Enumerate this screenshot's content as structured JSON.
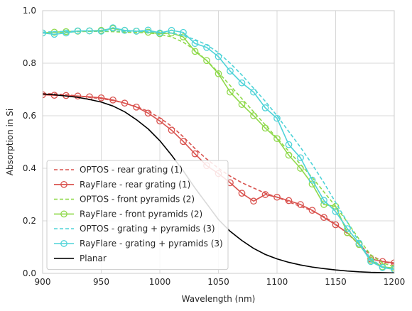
{
  "chart_data": {
    "type": "line",
    "title": "",
    "xlabel": "Wavelength (nm)",
    "ylabel": "Absorption in Si",
    "xlim": [
      900,
      1200
    ],
    "ylim": [
      0.0,
      1.0
    ],
    "xticks": [
      "900",
      "950",
      "1000",
      "1050",
      "1100",
      "1150",
      "1200"
    ],
    "yticks": [
      "0.0",
      "0.2",
      "0.4",
      "0.6",
      "0.8",
      "1.0"
    ],
    "grid": true,
    "legend_position": "lower-left",
    "colors": {
      "rear_grating": "#d9534f",
      "front_pyramids": "#8fd94a",
      "grating_pyramids": "#4fd3d8",
      "planar": "#000000",
      "grid": "#d9d9d9",
      "frame": "#cccccc"
    },
    "series": [
      {
        "name": "OPTOS - rear grating (1)",
        "style": "dashed",
        "color_key": "rear_grating",
        "x": [
          900,
          910,
          920,
          930,
          940,
          950,
          960,
          970,
          980,
          990,
          1000,
          1010,
          1020,
          1030,
          1040,
          1050,
          1060,
          1070,
          1080,
          1090,
          1100,
          1110,
          1120,
          1130,
          1140,
          1150,
          1160,
          1170,
          1180,
          1190,
          1200
        ],
        "y": [
          0.685,
          0.683,
          0.68,
          0.675,
          0.67,
          0.665,
          0.658,
          0.648,
          0.635,
          0.617,
          0.592,
          0.56,
          0.52,
          0.475,
          0.435,
          0.4,
          0.37,
          0.345,
          0.325,
          0.305,
          0.29,
          0.272,
          0.255,
          0.238,
          0.216,
          0.188,
          0.152,
          0.11,
          0.07,
          0.045,
          0.035
        ]
      },
      {
        "name": "RayFlare - rear grating (1)",
        "style": "solid-marker",
        "color_key": "rear_grating",
        "x": [
          900,
          910,
          920,
          930,
          940,
          950,
          960,
          970,
          980,
          990,
          1000,
          1010,
          1020,
          1030,
          1040,
          1050,
          1060,
          1070,
          1080,
          1090,
          1100,
          1110,
          1120,
          1130,
          1140,
          1150,
          1160,
          1170,
          1180,
          1190,
          1200
        ],
        "y": [
          0.68,
          0.678,
          0.677,
          0.675,
          0.672,
          0.668,
          0.66,
          0.648,
          0.633,
          0.61,
          0.58,
          0.545,
          0.502,
          0.455,
          0.41,
          0.38,
          0.345,
          0.305,
          0.275,
          0.3,
          0.29,
          0.277,
          0.262,
          0.24,
          0.213,
          0.185,
          0.155,
          0.11,
          0.055,
          0.045,
          0.04
        ]
      },
      {
        "name": "OPTOS - front pyramids (2)",
        "style": "dashed",
        "color_key": "front_pyramids",
        "x": [
          900,
          910,
          920,
          930,
          940,
          950,
          960,
          970,
          980,
          990,
          1000,
          1010,
          1020,
          1030,
          1040,
          1050,
          1060,
          1070,
          1080,
          1090,
          1100,
          1110,
          1120,
          1130,
          1140,
          1150,
          1160,
          1170,
          1180,
          1190,
          1200
        ],
        "y": [
          0.915,
          0.917,
          0.918,
          0.92,
          0.921,
          0.921,
          0.92,
          0.918,
          0.917,
          0.915,
          0.91,
          0.9,
          0.88,
          0.85,
          0.81,
          0.765,
          0.715,
          0.665,
          0.615,
          0.565,
          0.515,
          0.465,
          0.415,
          0.365,
          0.31,
          0.255,
          0.195,
          0.13,
          0.07,
          0.04,
          0.025
        ]
      },
      {
        "name": "RayFlare - front pyramids (2)",
        "style": "solid-marker",
        "color_key": "front_pyramids",
        "x": [
          900,
          910,
          920,
          930,
          940,
          950,
          960,
          970,
          980,
          990,
          1000,
          1010,
          1020,
          1030,
          1040,
          1050,
          1060,
          1070,
          1080,
          1090,
          1100,
          1110,
          1120,
          1130,
          1140,
          1150,
          1160,
          1170,
          1180,
          1190,
          1200
        ],
        "y": [
          0.915,
          0.918,
          0.92,
          0.922,
          0.923,
          0.925,
          0.932,
          0.925,
          0.922,
          0.918,
          0.912,
          0.915,
          0.9,
          0.845,
          0.81,
          0.76,
          0.69,
          0.643,
          0.6,
          0.553,
          0.513,
          0.45,
          0.4,
          0.34,
          0.262,
          0.255,
          0.155,
          0.11,
          0.05,
          0.025,
          0.02
        ]
      },
      {
        "name": "OPTOS - grating + pyramids (3)",
        "style": "dashed",
        "color_key": "grating_pyramids",
        "x": [
          900,
          910,
          920,
          930,
          940,
          950,
          960,
          970,
          980,
          990,
          1000,
          1010,
          1020,
          1030,
          1040,
          1050,
          1060,
          1070,
          1080,
          1090,
          1100,
          1110,
          1120,
          1130,
          1140,
          1150,
          1160,
          1170,
          1180,
          1190,
          1200
        ],
        "y": [
          0.918,
          0.92,
          0.921,
          0.922,
          0.923,
          0.923,
          0.923,
          0.922,
          0.921,
          0.92,
          0.918,
          0.915,
          0.905,
          0.89,
          0.87,
          0.84,
          0.8,
          0.755,
          0.705,
          0.655,
          0.6,
          0.54,
          0.48,
          0.415,
          0.345,
          0.27,
          0.195,
          0.12,
          0.055,
          0.025,
          0.015
        ]
      },
      {
        "name": "RayFlare - grating + pyramids (3)",
        "style": "solid-marker",
        "color_key": "grating_pyramids",
        "x": [
          900,
          910,
          920,
          930,
          940,
          950,
          960,
          970,
          980,
          990,
          1000,
          1010,
          1020,
          1030,
          1040,
          1050,
          1060,
          1070,
          1080,
          1090,
          1100,
          1110,
          1120,
          1130,
          1140,
          1150,
          1160,
          1170,
          1180,
          1190,
          1200
        ],
        "y": [
          0.915,
          0.91,
          0.915,
          0.923,
          0.923,
          0.922,
          0.935,
          0.925,
          0.922,
          0.926,
          0.915,
          0.925,
          0.917,
          0.875,
          0.86,
          0.825,
          0.77,
          0.725,
          0.69,
          0.63,
          0.59,
          0.49,
          0.44,
          0.355,
          0.278,
          0.235,
          0.17,
          0.115,
          0.045,
          0.022,
          0.015
        ]
      },
      {
        "name": "Planar",
        "style": "solid",
        "color_key": "planar",
        "x": [
          900,
          910,
          920,
          930,
          940,
          950,
          960,
          970,
          980,
          990,
          1000,
          1010,
          1020,
          1030,
          1040,
          1050,
          1060,
          1070,
          1080,
          1090,
          1100,
          1110,
          1120,
          1130,
          1140,
          1150,
          1160,
          1170,
          1180,
          1190,
          1200
        ],
        "y": [
          0.683,
          0.68,
          0.675,
          0.67,
          0.662,
          0.652,
          0.637,
          0.615,
          0.585,
          0.55,
          0.505,
          0.45,
          0.39,
          0.325,
          0.265,
          0.205,
          0.16,
          0.125,
          0.095,
          0.072,
          0.055,
          0.042,
          0.032,
          0.024,
          0.018,
          0.013,
          0.009,
          0.006,
          0.004,
          0.003,
          0.002
        ]
      }
    ]
  }
}
